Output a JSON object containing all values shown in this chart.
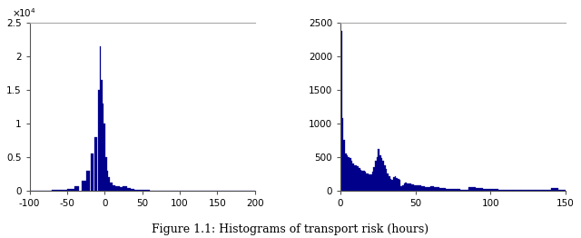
{
  "fig_width": 6.4,
  "fig_height": 2.62,
  "dpi": 100,
  "bar_color": "#00008B",
  "background_color": "#ffffff",
  "caption": "Figure 1.1: Histograms of transport risk (hours)",
  "left_hist": {
    "xlim": [
      -100,
      200
    ],
    "ylim": [
      0,
      25000
    ],
    "yticks": [
      0,
      5000,
      10000,
      15000,
      20000,
      25000
    ],
    "ytick_labels": [
      "0",
      "0.5",
      "1",
      "1.5",
      "2",
      "2.5"
    ],
    "xticks": [
      -100,
      -50,
      0,
      50,
      100,
      150,
      200
    ],
    "bin_centers": [
      -95,
      -85,
      -75,
      -65,
      -55,
      -45,
      -37,
      -27,
      -22,
      -17,
      -12,
      -8,
      -6,
      -4,
      -2,
      0,
      2,
      4,
      6,
      9,
      12,
      17,
      22,
      27,
      32,
      37,
      45,
      55,
      65,
      75,
      85,
      95,
      105,
      115,
      125,
      135,
      145,
      155,
      165,
      175,
      185,
      195
    ],
    "bin_widths": [
      10,
      10,
      10,
      10,
      10,
      10,
      6,
      6,
      4,
      4,
      3,
      2,
      2,
      2,
      2,
      2,
      2,
      2,
      2,
      4,
      4,
      6,
      6,
      6,
      6,
      6,
      10,
      10,
      10,
      10,
      10,
      10,
      10,
      10,
      10,
      10,
      10,
      10,
      10,
      10,
      10,
      10
    ],
    "bin_heights": [
      5,
      10,
      20,
      50,
      80,
      200,
      600,
      1500,
      3000,
      5500,
      8000,
      15000,
      21500,
      16500,
      13000,
      10000,
      5000,
      3000,
      2000,
      1200,
      800,
      600,
      500,
      600,
      400,
      200,
      100,
      50,
      30,
      20,
      10,
      5,
      5,
      3,
      2,
      2,
      2,
      2,
      2,
      1,
      1,
      1
    ]
  },
  "right_hist": {
    "xlim": [
      0,
      150
    ],
    "ylim": [
      0,
      2500
    ],
    "yticks": [
      0,
      500,
      1000,
      1500,
      2000,
      2500
    ],
    "xticks": [
      0,
      50,
      100,
      150
    ],
    "bin_edges": [
      0,
      1,
      2,
      3,
      4,
      5,
      6,
      7,
      8,
      9,
      10,
      11,
      12,
      13,
      14,
      15,
      16,
      17,
      18,
      19,
      20,
      21,
      22,
      23,
      24,
      25,
      26,
      27,
      28,
      29,
      30,
      31,
      32,
      33,
      34,
      35,
      36,
      37,
      38,
      39,
      40,
      41,
      42,
      43,
      44,
      45,
      46,
      47,
      48,
      49,
      50,
      52,
      54,
      56,
      58,
      60,
      62,
      64,
      66,
      68,
      70,
      72,
      74,
      76,
      78,
      80,
      85,
      90,
      95,
      100,
      105,
      110,
      115,
      120,
      125,
      130,
      135,
      140,
      145,
      150
    ],
    "bin_heights": [
      2380,
      1080,
      750,
      550,
      520,
      500,
      480,
      440,
      400,
      380,
      380,
      360,
      330,
      310,
      300,
      290,
      280,
      260,
      250,
      240,
      235,
      280,
      350,
      440,
      500,
      620,
      530,
      480,
      440,
      380,
      320,
      250,
      210,
      180,
      160,
      200,
      220,
      190,
      175,
      155,
      60,
      80,
      100,
      120,
      110,
      105,
      100,
      95,
      90,
      80,
      80,
      75,
      65,
      55,
      45,
      60,
      55,
      50,
      40,
      35,
      30,
      30,
      25,
      20,
      20,
      15,
      50,
      35,
      20,
      20,
      15,
      15,
      10,
      10,
      8,
      5,
      5,
      35,
      10
    ]
  }
}
